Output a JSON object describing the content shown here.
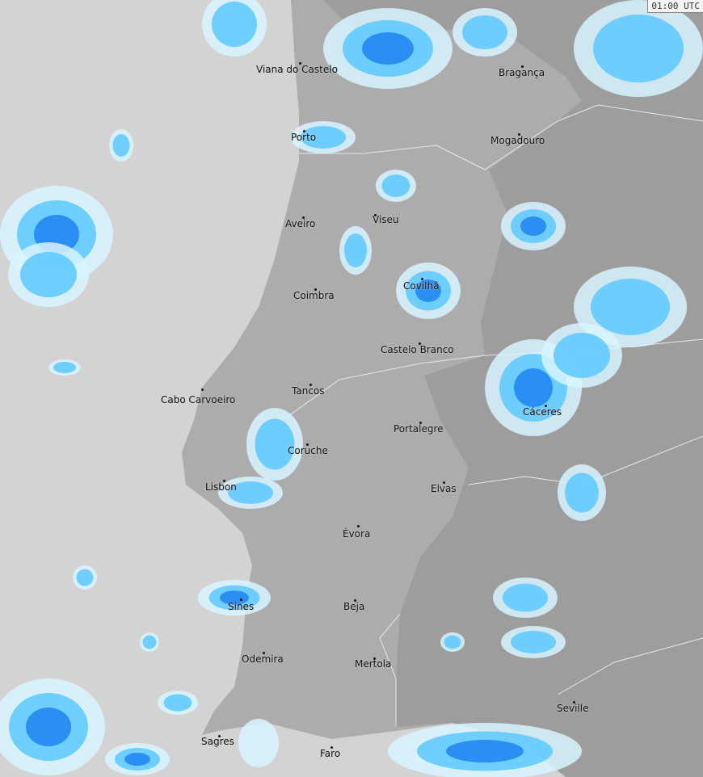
{
  "timestamp": "01:00 UTC",
  "colors": {
    "sea": "#d3d3d3",
    "portugal": "#acacac",
    "spain": "#9d9d9d",
    "radar_light": "#d8f4ff",
    "radar_mid": "#5cc8ff",
    "radar_strong": "#1e82f0",
    "radar_heavy": "#3040e0"
  },
  "cities": [
    {
      "name": "Viana do Castelo"
    },
    {
      "name": "Bragança"
    },
    {
      "name": "Porto"
    },
    {
      "name": "Mogadouro"
    },
    {
      "name": "Aveiro"
    },
    {
      "name": "Viseu"
    },
    {
      "name": "Coimbra"
    },
    {
      "name": "Covilhã"
    },
    {
      "name": "Castelo Branco"
    },
    {
      "name": "Cabo Carvoeiro"
    },
    {
      "name": "Tancos"
    },
    {
      "name": "Portalegre"
    },
    {
      "name": "Cáceres"
    },
    {
      "name": "Coruche"
    },
    {
      "name": "Lisbon"
    },
    {
      "name": "Elvas"
    },
    {
      "name": "Évora"
    },
    {
      "name": "Sines"
    },
    {
      "name": "Beja"
    },
    {
      "name": "Odemira"
    },
    {
      "name": "Mertola"
    },
    {
      "name": "Seville"
    },
    {
      "name": "Sagres"
    },
    {
      "name": "Faro"
    }
  ]
}
